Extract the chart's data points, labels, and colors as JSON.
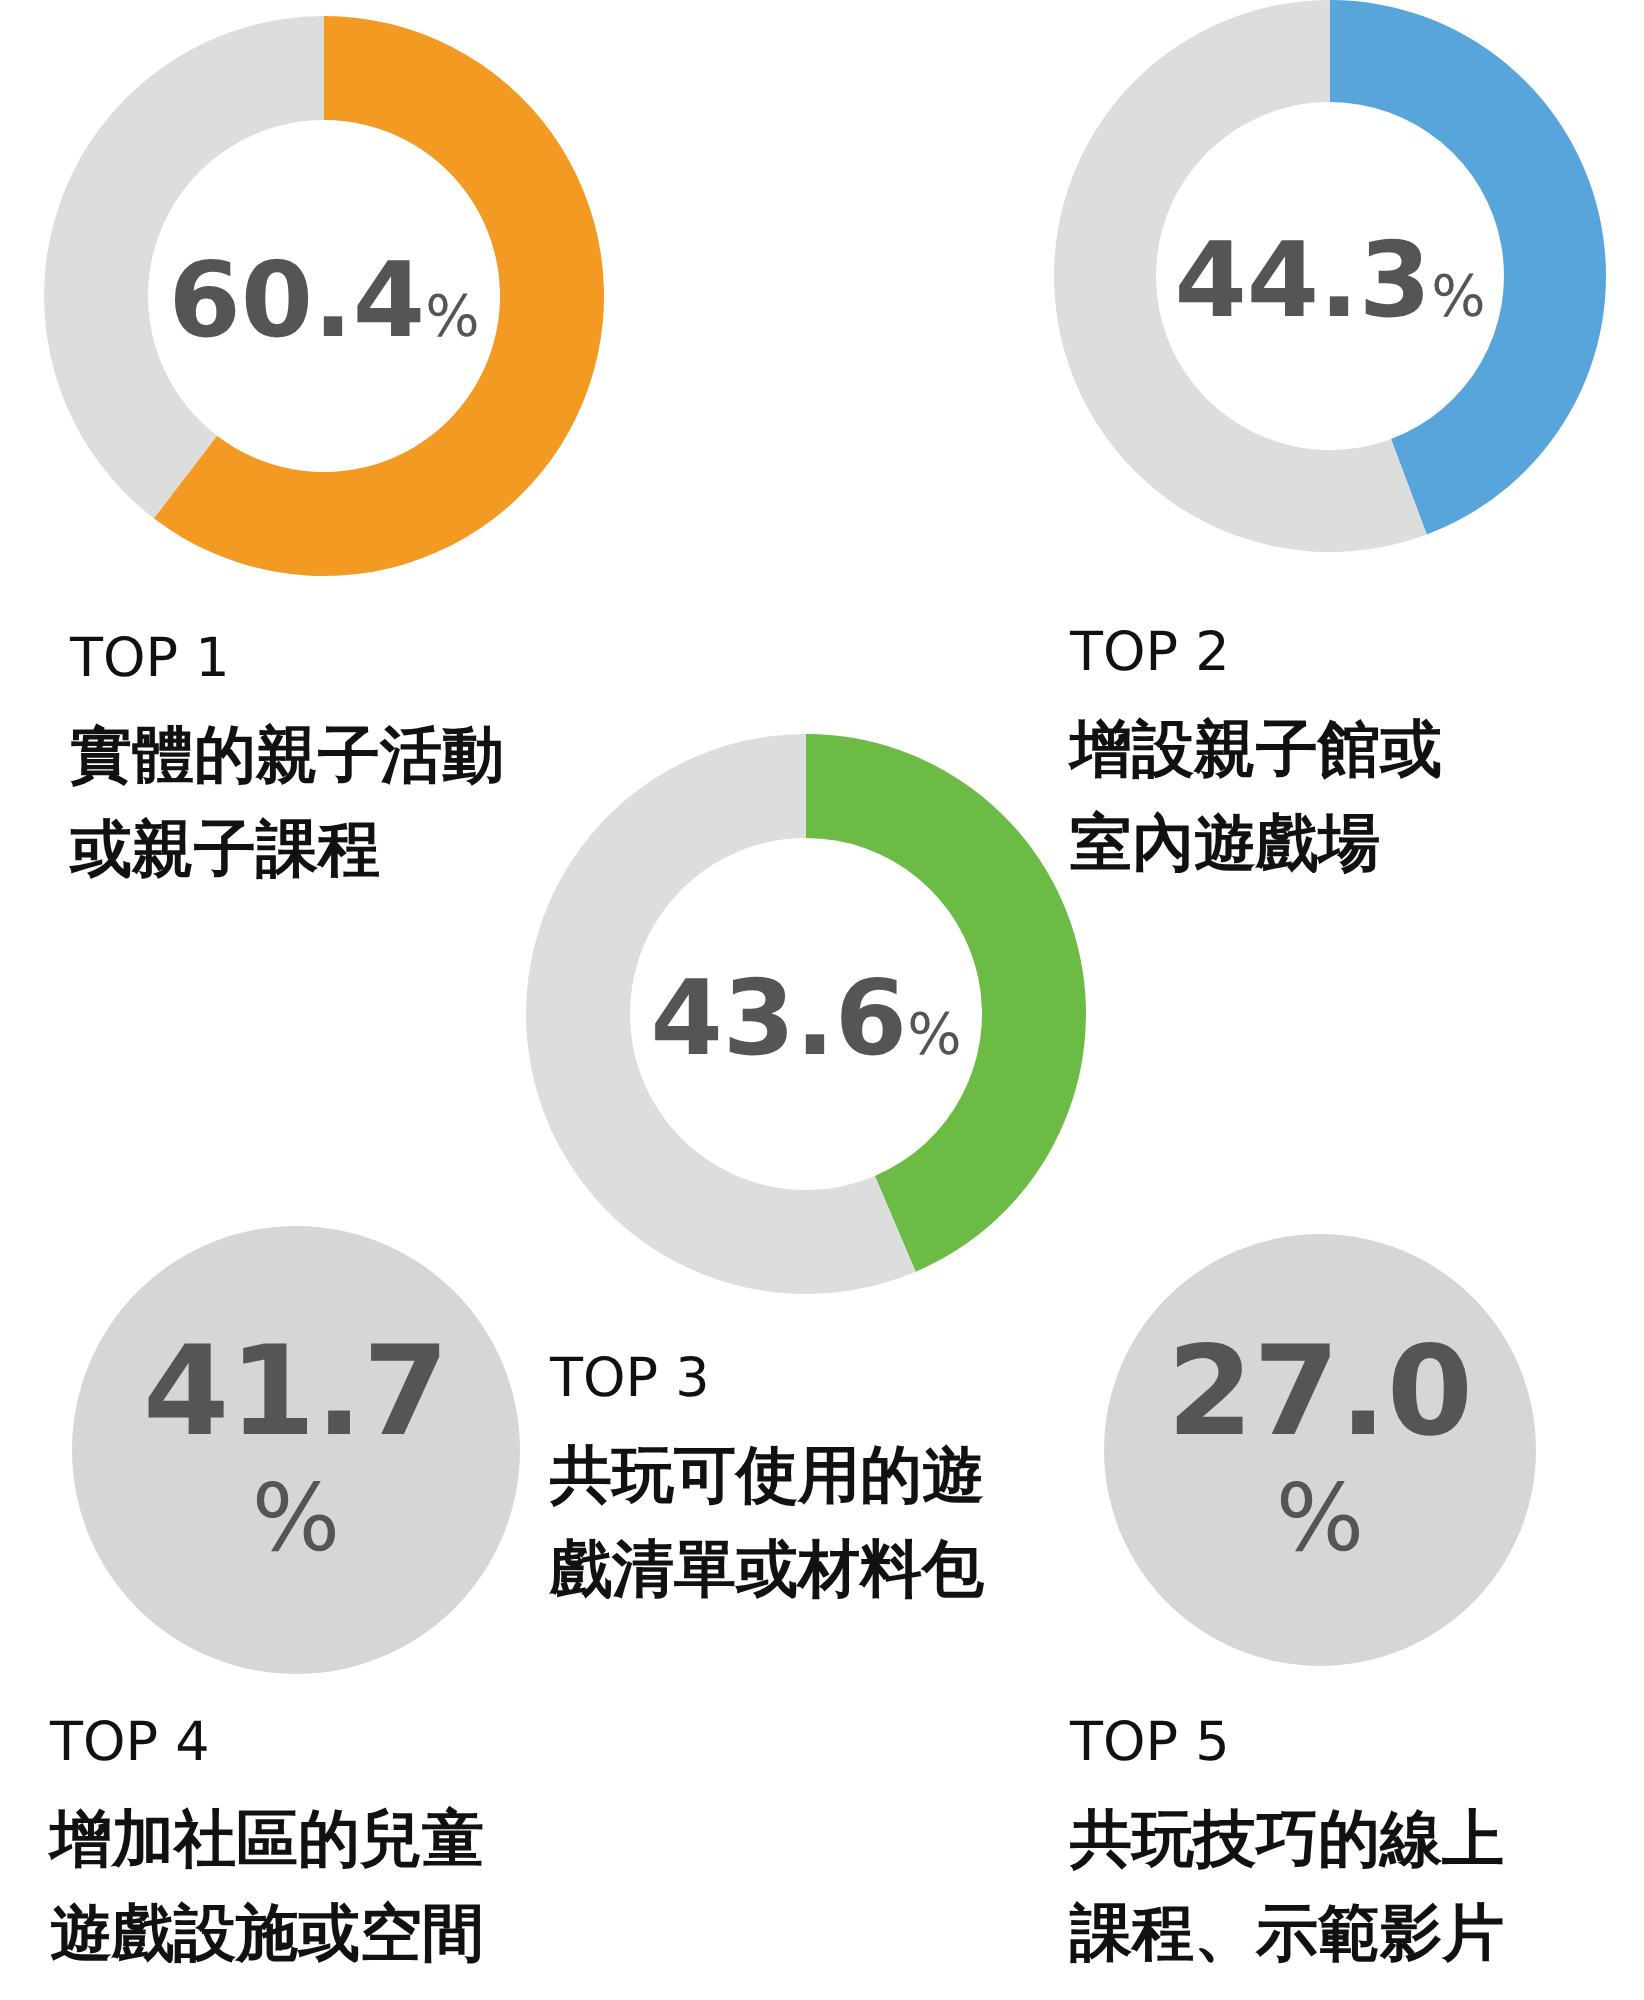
{
  "chart_data": [
    {
      "type": "donut",
      "title": "TOP 1",
      "subtitle": "實體的親子活動或親子課程",
      "categories": [
        null,
        null
      ],
      "values": [
        60.4,
        39.6
      ],
      "colors": [
        "#f29a22",
        "#dcdedd"
      ],
      "annotations": [
        "60.4%"
      ]
    },
    {
      "type": "donut",
      "title": "TOP 2",
      "subtitle": "增設親子館或室內遊戲場",
      "categories": [
        null,
        null
      ],
      "values": [
        44.3,
        55.7
      ],
      "colors": [
        "#58a5dc",
        "#dcdedd"
      ],
      "annotations": [
        "44.3%"
      ]
    },
    {
      "type": "donut",
      "title": "TOP 3",
      "subtitle": "共玩可使用的遊戲清單或材料包",
      "categories": [
        null,
        null
      ],
      "values": [
        43.6,
        56.4
      ],
      "colors": [
        "#6cbb45",
        "#dcdedd"
      ],
      "annotations": [
        "43.6%"
      ]
    },
    {
      "type": "other",
      "title": "TOP 4",
      "subtitle": "增加社區的兒童遊戲設施或空間",
      "annotations": [
        "41.7%"
      ]
    },
    {
      "type": "other",
      "title": "TOP 5",
      "subtitle": "共玩技巧的線上課程、示範影片",
      "annotations": [
        "27.0%"
      ]
    }
  ]
}
